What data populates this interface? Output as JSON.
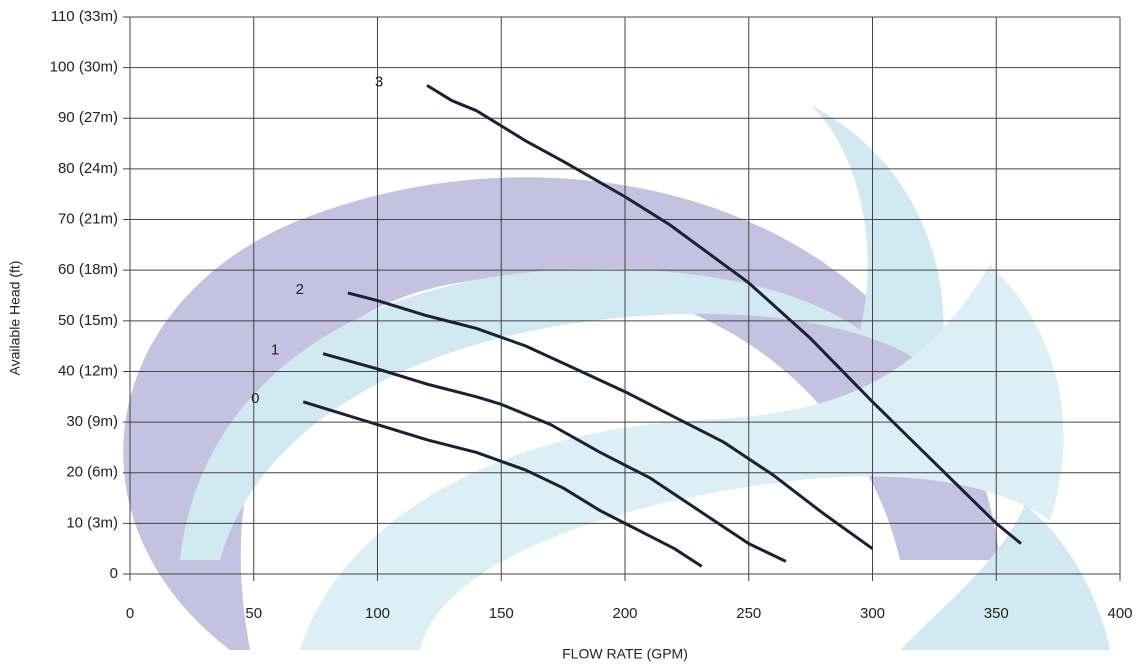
{
  "chart_data": {
    "type": "line",
    "x_label": "FLOW RATE (GPM)",
    "y_label": "Available Head (ft)",
    "xlim": [
      0,
      400
    ],
    "xticks": [
      0,
      50,
      100,
      150,
      200,
      250,
      300,
      350,
      400
    ],
    "ylim": [
      0,
      110
    ],
    "yticks": [
      {
        "value": 0,
        "label": "0"
      },
      {
        "value": 10,
        "label": "10 (3m)"
      },
      {
        "value": 20,
        "label": "20 (6m)"
      },
      {
        "value": 30,
        "label": "30 (9m)"
      },
      {
        "value": 40,
        "label": "40 (12m)"
      },
      {
        "value": 50,
        "label": "50 (15m)"
      },
      {
        "value": 60,
        "label": "60 (18m)"
      },
      {
        "value": 70,
        "label": "70 (21m)"
      },
      {
        "value": 80,
        "label": "80 (24m)"
      },
      {
        "value": 90,
        "label": "90 (27m)"
      },
      {
        "value": 100,
        "label": "100 (30m)"
      },
      {
        "value": 110,
        "label": "110 (33m)"
      }
    ],
    "grid": true,
    "series": [
      {
        "name": "0",
        "color": "#1b2036",
        "x": [
          70,
          80,
          100,
          120,
          140,
          160,
          175,
          190,
          200,
          220,
          231
        ],
        "values": [
          34,
          32.5,
          29.5,
          26.5,
          24,
          20.5,
          17,
          12.5,
          10,
          5,
          1.5
        ]
      },
      {
        "name": "1",
        "color": "#1b2036",
        "x": [
          78,
          100,
          120,
          140,
          150,
          170,
          190,
          210,
          230,
          250,
          265
        ],
        "values": [
          43.5,
          40.5,
          37.5,
          35,
          33.5,
          29.5,
          24,
          19,
          12.5,
          6,
          2.5
        ]
      },
      {
        "name": "2",
        "color": "#1b2036",
        "x": [
          88,
          100,
          120,
          140,
          160,
          180,
          200,
          220,
          240,
          260,
          280,
          300
        ],
        "values": [
          55.5,
          54,
          51,
          48.5,
          45,
          40.5,
          36,
          31,
          26,
          19.5,
          12,
          5
        ]
      },
      {
        "name": "3",
        "color": "#1b2036",
        "x": [
          120,
          130,
          140,
          150,
          160,
          175,
          200,
          218,
          250,
          275,
          300,
          325,
          350,
          360
        ],
        "values": [
          96.5,
          93.5,
          91.5,
          88.5,
          85.5,
          81.5,
          74.5,
          69,
          57.5,
          46.5,
          34,
          22,
          10,
          6
        ]
      }
    ]
  }
}
